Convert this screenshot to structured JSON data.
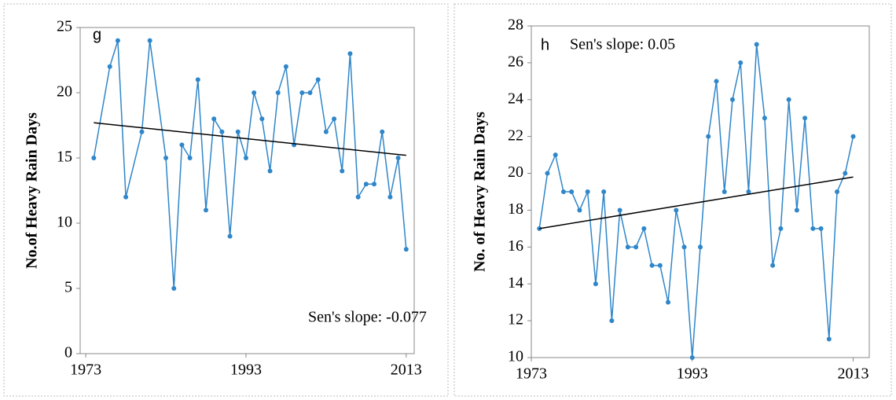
{
  "chart_data": [
    {
      "type": "line",
      "annotation": "g",
      "slope_label": "Sen's slope: -0.077",
      "y_label": "No.of Heavy Rain Days",
      "x": [
        1974,
        1976,
        1977,
        1978,
        1980,
        1981,
        1983,
        1984,
        1985,
        1986,
        1987,
        1988,
        1989,
        1990,
        1991,
        1992,
        1993,
        1994,
        1995,
        1996,
        1997,
        1998,
        1999,
        2000,
        2001,
        2002,
        2003,
        2004,
        2005,
        2006,
        2007,
        2008,
        2009,
        2010,
        2011,
        2012,
        2013
      ],
      "series": [
        {
          "color": "#2f86c9",
          "values": [
            15,
            22,
            24,
            12,
            17,
            24,
            15,
            5,
            16,
            15,
            21,
            11,
            18,
            17,
            9,
            17,
            15,
            20,
            18,
            14,
            20,
            22,
            16,
            20,
            20,
            21,
            17,
            18,
            14,
            23,
            12,
            13,
            13,
            17,
            12,
            15,
            8
          ]
        }
      ],
      "trend_line": {
        "color": "#000000",
        "x": [
          1974,
          2013
        ],
        "values": [
          17.7,
          15.2
        ]
      },
      "xlim": [
        1972.3,
        2014
      ],
      "xticks": [
        1973,
        1993,
        2013
      ],
      "ylim": [
        0,
        25
      ],
      "yticks": [
        0,
        5,
        10,
        15,
        20,
        25
      ]
    },
    {
      "type": "line",
      "annotation": "h",
      "slope_label": "Sen's slope: 0.05",
      "y_label": "No. of Heavy Rain Days",
      "x": [
        1974,
        1975,
        1976,
        1977,
        1978,
        1979,
        1980,
        1981,
        1982,
        1983,
        1984,
        1985,
        1986,
        1987,
        1988,
        1989,
        1990,
        1991,
        1992,
        1993,
        1994,
        1995,
        1996,
        1997,
        1998,
        1999,
        2000,
        2001,
        2002,
        2003,
        2004,
        2005,
        2006,
        2007,
        2008,
        2009,
        2010,
        2011,
        2012,
        2013
      ],
      "series": [
        {
          "color": "#2f86c9",
          "values": [
            17,
            20,
            21,
            19,
            19,
            18,
            19,
            14,
            19,
            12,
            18,
            16,
            16,
            17,
            15,
            15,
            13,
            18,
            16,
            10,
            16,
            22,
            25,
            19,
            24,
            26,
            19,
            27,
            23,
            15,
            17,
            24,
            18,
            23,
            17,
            17,
            11,
            19,
            20,
            22
          ]
        }
      ],
      "trend_line": {
        "color": "#000000",
        "x": [
          1974,
          2013
        ],
        "values": [
          17,
          19.8
        ]
      },
      "xlim": [
        1973,
        2015
      ],
      "xticks": [
        1973,
        1993,
        2013
      ],
      "ylim": [
        10,
        28
      ],
      "yticks": [
        10,
        12,
        14,
        16,
        18,
        20,
        22,
        24,
        26,
        28
      ]
    }
  ]
}
